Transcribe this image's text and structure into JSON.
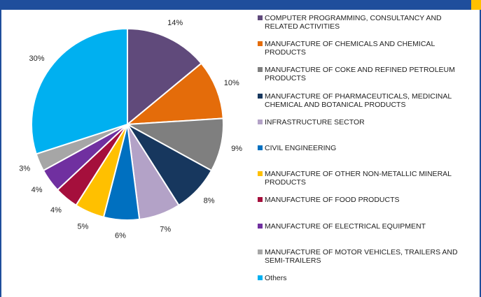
{
  "chart_data": {
    "type": "pie",
    "categories": [
      "COMPUTER PROGRAMMING, CONSULTANCY AND RELATED ACTIVITIES",
      "MANUFACTURE OF CHEMICALS AND CHEMICAL PRODUCTS",
      "MANUFACTURE OF COKE AND REFINED PETROLEUM PRODUCTS",
      "MANUFACTURE OF PHARMACEUTICALS, MEDICINAL CHEMICAL AND BOTANICAL PRODUCTS",
      "INFRASTRUCTURE SECTOR",
      "CIVIL ENGINEERING",
      "MANUFACTURE OF OTHER NON-METALLIC MINERAL PRODUCTS",
      "MANUFACTURE OF FOOD PRODUCTS",
      "MANUFACTURE OF ELECTRICAL EQUIPMENT",
      "MANUFACTURE OF MOTOR VEHICLES, TRAILERS AND SEMI-TRAILERS",
      "Others"
    ],
    "values": [
      14,
      10,
      9,
      8,
      7,
      6,
      5,
      4,
      4,
      3,
      30
    ],
    "value_labels": [
      "14%",
      "10%",
      "9%",
      "8%",
      "7%",
      "6%",
      "5%",
      "4%",
      "4%",
      "3%",
      "30%"
    ],
    "colors": [
      "#604a7b",
      "#e46c0a",
      "#7f7f7f",
      "#17375e",
      "#b3a2c7",
      "#0070c0",
      "#ffc000",
      "#a50f3c",
      "#7030a0",
      "#a6a6a6",
      "#00b0f0"
    ]
  }
}
